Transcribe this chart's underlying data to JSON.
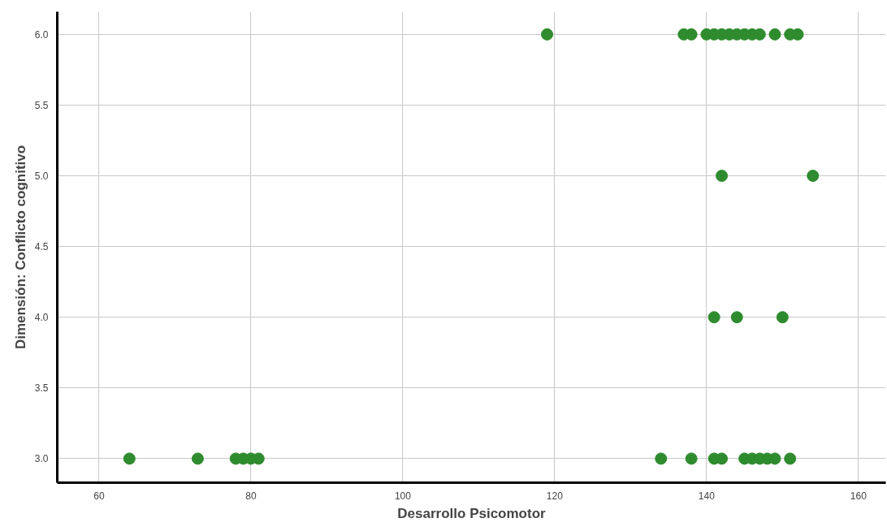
{
  "chart_data": {
    "type": "scatter",
    "xlabel": "Desarrollo Psicomotor",
    "ylabel": "Dimensión: Conflicto cognitivo",
    "x": [
      119,
      137,
      138,
      140,
      141,
      142,
      143,
      144,
      145,
      146,
      147,
      149,
      151,
      152,
      142,
      154,
      141,
      144,
      150,
      64,
      73,
      78,
      79,
      80,
      81,
      134,
      138,
      141,
      142,
      145,
      146,
      147,
      148,
      149,
      151
    ],
    "series": [
      {
        "color": "#2e8b2e",
        "values": [
          6,
          6,
          6,
          6,
          6,
          6,
          6,
          6,
          6,
          6,
          6,
          6,
          6,
          6,
          5,
          5,
          4,
          4,
          4,
          3,
          3,
          3,
          3,
          3,
          3,
          3,
          3,
          3,
          3,
          3,
          3,
          3,
          3,
          3,
          3
        ]
      }
    ],
    "xlim": [
      54.5,
      163.6
    ],
    "ylim": [
      2.83,
      6.16
    ],
    "xticks": [
      60,
      80,
      100,
      120,
      140,
      160
    ],
    "yticks": [
      {
        "value": 3,
        "label": "3.0"
      },
      {
        "value": 3.5,
        "label": "3.5"
      },
      {
        "value": 4,
        "label": "4.0"
      },
      {
        "value": 4.5,
        "label": "4.5"
      },
      {
        "value": 5,
        "label": "5.0"
      },
      {
        "value": 5.5,
        "label": "5.5"
      },
      {
        "value": 6,
        "label": "6.0"
      }
    ],
    "grid": true,
    "marker": "circle"
  }
}
